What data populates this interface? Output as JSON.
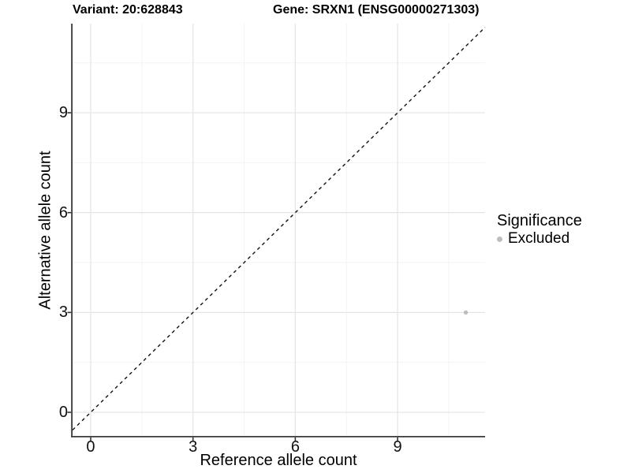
{
  "titles": {
    "variant": "Variant: 20:628843",
    "gene": "Gene: SRXN1 (ENSG00000271303)"
  },
  "legend": {
    "title": "Significance",
    "items": [
      {
        "label": "Excluded",
        "color": "#bdbdbd"
      }
    ]
  },
  "colors": {
    "background": "#ffffff",
    "grid_major": "#e6e6e6",
    "grid_minor": "#f3f3f3",
    "axis_line": "#3a3a3a",
    "tick_mark": "#333333",
    "reference_line": "#111111",
    "point": "#bdbdbd"
  },
  "chart_data": {
    "type": "scatter",
    "title": "Variant: 20:628843 — Gene: SRXN1 (ENSG00000271303)",
    "xlabel": "Reference allele count",
    "ylabel": "Alternative allele count",
    "xlim": [
      -0.532,
      11.566
    ],
    "ylim": [
      -0.71,
      11.677
    ],
    "x_ticks": [
      0,
      3,
      6,
      9
    ],
    "y_ticks": [
      0,
      3,
      6,
      9
    ],
    "x_minor_ticks": [
      1.5,
      4.5,
      7.5,
      10.5
    ],
    "y_minor_ticks": [
      1.5,
      4.5,
      7.5,
      10.5
    ],
    "grid": true,
    "legend_position": "right",
    "legend_title": "Significance",
    "series": [
      {
        "name": "Excluded",
        "color": "#bdbdbd",
        "points": [
          {
            "x": 11,
            "y": 3
          }
        ]
      }
    ],
    "reference_line": {
      "slope": 1,
      "intercept": 0,
      "style": "dashed",
      "color": "#111111"
    }
  }
}
